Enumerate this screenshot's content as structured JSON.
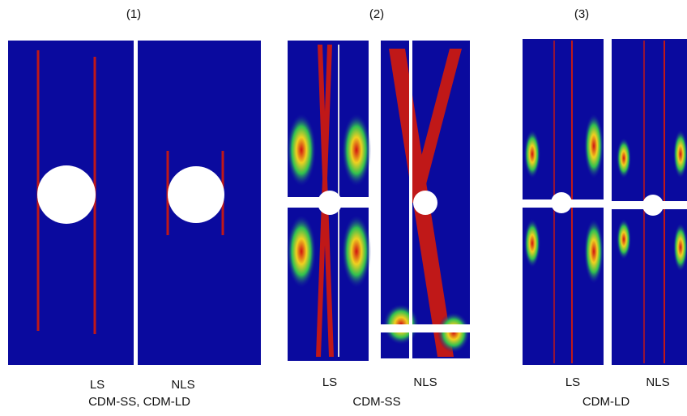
{
  "panels": [
    {
      "number": "(1)",
      "left": "LS",
      "right": "NLS",
      "caption": "CDM-SS, CDM-LD"
    },
    {
      "number": "(2)",
      "left": "LS",
      "right": "NLS",
      "caption": "CDM-SS"
    },
    {
      "number": "(3)",
      "left": "LS",
      "right": "NLS",
      "caption": "CDM-LD"
    }
  ]
}
